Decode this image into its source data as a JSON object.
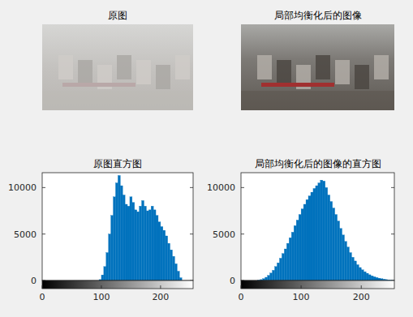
{
  "chart_data": [
    {
      "type": "image",
      "title": "原图"
    },
    {
      "type": "image",
      "title": "局部均衡化后的图像"
    },
    {
      "type": "histogram",
      "title": "原图直方图",
      "color": "#0072bd",
      "grid": false,
      "xlim": [
        0,
        255
      ],
      "xticks": [
        0,
        100,
        200
      ],
      "ylim": [
        0,
        11600
      ],
      "yticks": [
        0,
        5000,
        10000
      ],
      "bins": [
        0,
        4,
        8,
        12,
        16,
        20,
        24,
        28,
        32,
        36,
        40,
        44,
        48,
        52,
        56,
        60,
        64,
        68,
        72,
        76,
        80,
        84,
        88,
        92,
        96,
        100,
        104,
        108,
        112,
        116,
        120,
        124,
        128,
        132,
        136,
        140,
        144,
        148,
        152,
        156,
        160,
        164,
        168,
        172,
        176,
        180,
        184,
        188,
        192,
        196,
        200,
        204,
        208,
        212,
        216,
        220,
        224,
        228,
        232,
        236,
        240,
        244,
        248,
        252,
        256
      ],
      "values": [
        0,
        0,
        0,
        0,
        0,
        0,
        0,
        0,
        0,
        0,
        0,
        0,
        0,
        0,
        0,
        0,
        0,
        0,
        0,
        0,
        0,
        0,
        0,
        0,
        100,
        600,
        1500,
        3000,
        5000,
        7000,
        9000,
        10500,
        11300,
        10200,
        9200,
        8200,
        8000,
        9000,
        8400,
        7600,
        7400,
        8000,
        8600,
        8000,
        7500,
        7600,
        8000,
        7600,
        7000,
        6300,
        5800,
        5400,
        4800,
        4000,
        3300,
        2600,
        1800,
        1000,
        300,
        0,
        0,
        0,
        0,
        0
      ]
    },
    {
      "type": "histogram",
      "title": "局部均衡化后的图像的直方图",
      "color": "#0072bd",
      "grid": false,
      "xlim": [
        0,
        255
      ],
      "xticks": [
        0,
        100,
        200
      ],
      "ylim": [
        0,
        11600
      ],
      "yticks": [
        0,
        5000,
        10000
      ],
      "bins": [
        0,
        4,
        8,
        12,
        16,
        20,
        24,
        28,
        32,
        36,
        40,
        44,
        48,
        52,
        56,
        60,
        64,
        68,
        72,
        76,
        80,
        84,
        88,
        92,
        96,
        100,
        104,
        108,
        112,
        116,
        120,
        124,
        128,
        132,
        136,
        140,
        144,
        148,
        152,
        156,
        160,
        164,
        168,
        172,
        176,
        180,
        184,
        188,
        192,
        196,
        200,
        204,
        208,
        212,
        216,
        220,
        224,
        228,
        232,
        236,
        240,
        244,
        248,
        252,
        256
      ],
      "values": [
        0,
        0,
        0,
        0,
        0,
        0,
        0,
        30,
        100,
        200,
        350,
        550,
        800,
        1100,
        1500,
        1900,
        2400,
        2900,
        3400,
        4000,
        4600,
        5200,
        5900,
        6500,
        7100,
        7700,
        8200,
        8700,
        9100,
        9500,
        9900,
        10200,
        10500,
        10800,
        10700,
        10000,
        9200,
        8500,
        7800,
        7100,
        6400,
        5600,
        4900,
        4200,
        3600,
        3000,
        2500,
        2100,
        1700,
        1400,
        1150,
        950,
        780,
        620,
        500,
        400,
        320,
        250,
        190,
        140,
        100,
        60,
        30,
        10
      ]
    }
  ]
}
